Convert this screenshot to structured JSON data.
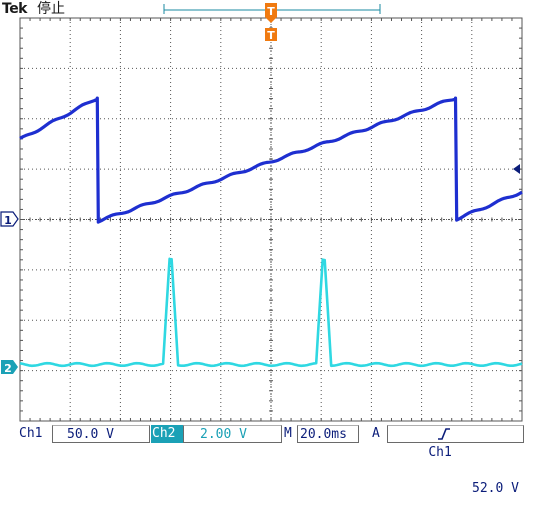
{
  "header": {
    "brand": "Tek",
    "status": "停止"
  },
  "markers": {
    "trigger_position": "T",
    "trigger_pointer": "T",
    "ch1_ground": "1",
    "ch2_ground": "2"
  },
  "readouts": {
    "ch1_label": "Ch1",
    "ch1_scale": "50.0 V",
    "ch2_label": "Ch2",
    "ch2_scale": "2.00 V",
    "time_label": "M",
    "time_scale": "20.0ms",
    "trigger_mode": "A",
    "trigger_source": "Ch1",
    "trigger_slope_icon": "rising-edge",
    "trigger_level": "52.0 V"
  },
  "colors": {
    "ch1_trace": "#1e2fd0",
    "ch2_trace": "#2fd8e2",
    "grid": "#555555",
    "ch2_fill": "#1ba1b6"
  },
  "chart_data": {
    "type": "line",
    "title": "",
    "xlabel": "",
    "ylabel": "",
    "grid": true,
    "x_divisions": 10,
    "y_divisions": 8,
    "xlim": [
      0,
      200
    ],
    "x_units": "ms",
    "series": [
      {
        "x": [
          0,
          30.8,
          31.2,
          173.5,
          174.0,
          200
        ],
        "values": [
          79,
          120,
          -2,
          120,
          0,
          27
        ]
      },
      {
        "x": [
          0,
          57,
          59.6,
          60.4,
          63,
          118,
          120.6,
          121.4,
          124,
          200
        ],
        "values": [
          0.1,
          0.1,
          4.25,
          4.25,
          0.1,
          0.1,
          4.25,
          4.25,
          0.1,
          0.1
        ]
      }
    ]
  }
}
